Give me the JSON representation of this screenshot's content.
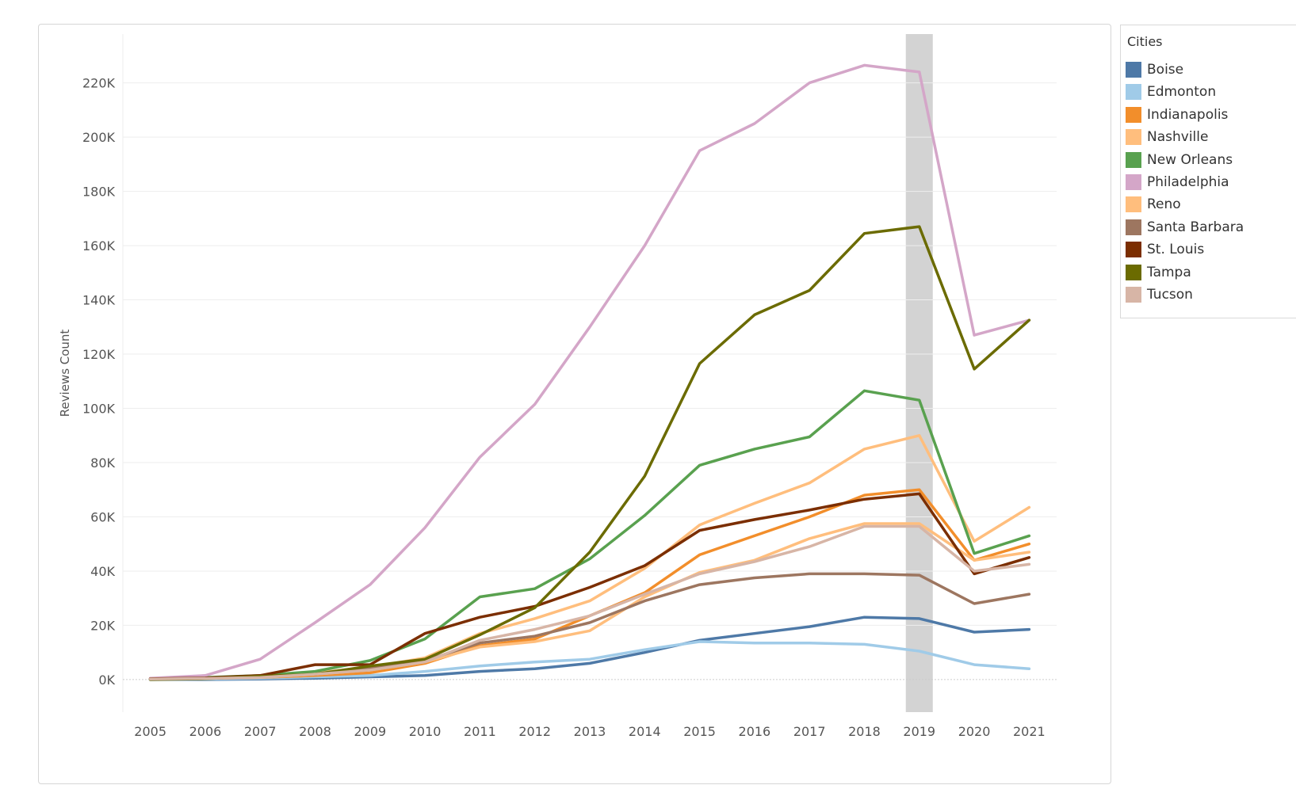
{
  "legend": {
    "title": "Cities"
  },
  "highlight": {
    "category": "2019",
    "color": "#d3d3d3"
  },
  "chart_data": {
    "type": "line",
    "ylabel": "Reviews Count",
    "xlabel": "",
    "x": [
      "2005",
      "2006",
      "2007",
      "2008",
      "2009",
      "2010",
      "2011",
      "2012",
      "2013",
      "2014",
      "2015",
      "2016",
      "2017",
      "2018",
      "2019",
      "2020",
      "2021"
    ],
    "yticks": [
      0,
      20000,
      40000,
      60000,
      80000,
      100000,
      120000,
      140000,
      160000,
      180000,
      200000,
      220000
    ],
    "ytick_labels": [
      "0K",
      "20K",
      "40K",
      "60K",
      "80K",
      "100K",
      "120K",
      "140K",
      "160K",
      "180K",
      "200K",
      "220K"
    ],
    "ylim": [
      -12000,
      238000
    ],
    "grid": "horizontal",
    "legend_position": "right",
    "series": [
      {
        "name": "Boise",
        "color": "#4e79a7",
        "values": [
          0,
          0,
          200,
          500,
          1000,
          1500,
          3000,
          4000,
          6000,
          10000,
          14500,
          17000,
          19500,
          23000,
          22500,
          17500,
          18500
        ]
      },
      {
        "name": "Edmonton",
        "color": "#a0cbe8",
        "values": [
          0,
          200,
          500,
          1000,
          1500,
          3000,
          5000,
          6500,
          7500,
          11000,
          14000,
          13500,
          13500,
          13000,
          10500,
          5500,
          4000
        ]
      },
      {
        "name": "Indianapolis",
        "color": "#f28e2b",
        "values": [
          300,
          500,
          800,
          1500,
          2500,
          6000,
          12500,
          15000,
          23500,
          32000,
          46000,
          53000,
          60000,
          68000,
          70000,
          44000,
          50000
        ]
      },
      {
        "name": "Nashville",
        "color": "#ffbe7d",
        "values": [
          300,
          500,
          1000,
          2500,
          4500,
          8000,
          17000,
          22500,
          29000,
          41000,
          57000,
          65000,
          72500,
          85000,
          90000,
          51000,
          63500
        ]
      },
      {
        "name": "New Orleans",
        "color": "#59a14f",
        "values": [
          300,
          800,
          1500,
          3000,
          7000,
          15000,
          30500,
          33500,
          44500,
          60500,
          79000,
          85000,
          89500,
          106500,
          103000,
          46500,
          53000
        ]
      },
      {
        "name": "Philadelphia",
        "color": "#d4a6c8",
        "values": [
          500,
          1500,
          7500,
          21000,
          35000,
          56000,
          82000,
          101500,
          130000,
          160000,
          195000,
          205000,
          220000,
          226500,
          224000,
          127000,
          132500
        ]
      },
      {
        "name": "Reno",
        "color": "#ffbe7d",
        "values": [
          200,
          400,
          800,
          2000,
          3500,
          6500,
          12000,
          14000,
          18000,
          30500,
          39500,
          44000,
          52000,
          57500,
          57500,
          44000,
          47000
        ]
      },
      {
        "name": "Santa Barbara",
        "color": "#9d7660",
        "values": [
          200,
          500,
          1000,
          2000,
          4000,
          7000,
          13500,
          16000,
          21000,
          29000,
          35000,
          37500,
          39000,
          39000,
          38500,
          28000,
          31500
        ]
      },
      {
        "name": "St. Louis",
        "color": "#7b2e00",
        "values": [
          300,
          600,
          1500,
          5500,
          5500,
          17000,
          23000,
          27000,
          34000,
          42000,
          55000,
          59000,
          62500,
          66500,
          68500,
          39000,
          45000
        ]
      },
      {
        "name": "Tampa",
        "color": "#6b6b00",
        "values": [
          0,
          300,
          1200,
          2000,
          5000,
          7500,
          16500,
          26500,
          47000,
          75000,
          116500,
          134500,
          143500,
          164500,
          167000,
          114500,
          132500
        ]
      },
      {
        "name": "Tucson",
        "color": "#d7b5a6",
        "values": [
          200,
          400,
          800,
          2000,
          3500,
          6500,
          14500,
          18500,
          23500,
          31500,
          39000,
          43500,
          49000,
          56500,
          56500,
          40000,
          42500
        ]
      }
    ]
  }
}
